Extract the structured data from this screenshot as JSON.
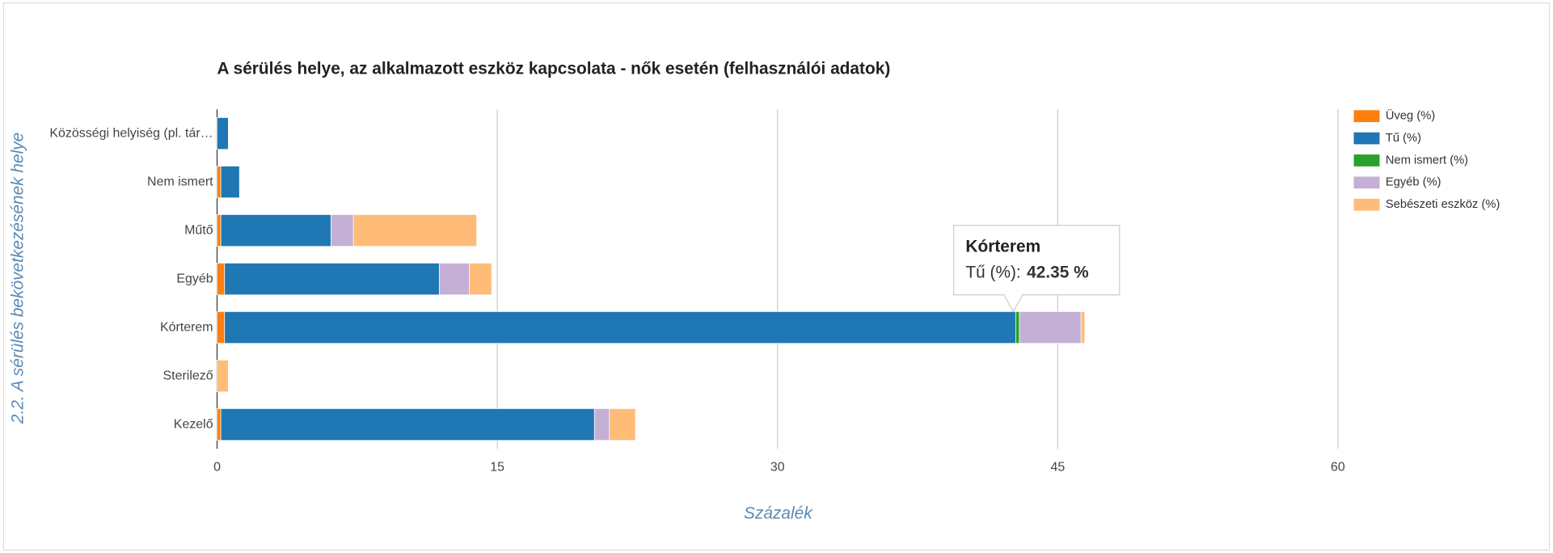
{
  "chart_data": {
    "type": "stacked_bar_horizontal",
    "title": "A sérülés  helye, az alkalmazott eszköz kapcsolata - nők esetén (felhasználói adatok)",
    "y_label": "2.2. A sérülés bekövetkezésének helye",
    "x_label": "Százalék",
    "categories": [
      "Közösségi helyiség (pl. tár…",
      "Nem ismert",
      "Műtő",
      "Egyéb",
      "Kórterem",
      "Sterilező",
      "Kezelő"
    ],
    "series": [
      {
        "name": "Üveg (%)",
        "color": "#ff7f0e",
        "values": [
          0,
          0.2,
          0.2,
          0.4,
          0.4,
          0,
          0.2
        ]
      },
      {
        "name": "Tű (%)",
        "color": "#1f77b4",
        "values": [
          0.6,
          1.0,
          5.9,
          11.5,
          42.35,
          0,
          20.0
        ]
      },
      {
        "name": "Nem ismert (%)",
        "color": "#2ca02c",
        "values": [
          0,
          0,
          0,
          0,
          0.2,
          0,
          0
        ]
      },
      {
        "name": "Egyéb (%)",
        "color": "#c5b0d5",
        "values": [
          0,
          0,
          1.2,
          1.6,
          3.3,
          0,
          0.8
        ]
      },
      {
        "name": "Sebészeti eszköz (%)",
        "color": "#ffbb78",
        "values": [
          0,
          0,
          6.6,
          1.2,
          0.2,
          0.6,
          1.4
        ]
      }
    ],
    "xlim": [
      0,
      60
    ],
    "xticks": [
      0,
      15,
      30,
      45,
      60
    ],
    "grid": true,
    "legend": "right",
    "tooltip": {
      "text": "Tű (%):",
      "value": "42.35 %"
    }
  }
}
